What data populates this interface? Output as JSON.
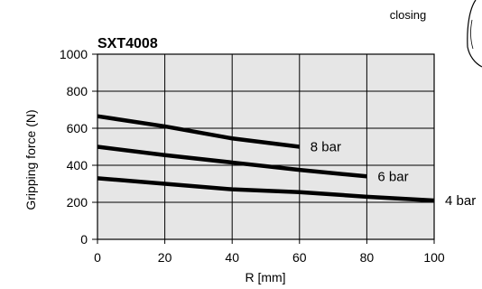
{
  "corner_label": "closing",
  "chart_data": {
    "type": "line",
    "title": "SXT4008",
    "xlabel": "R [mm]",
    "ylabel": "Gripping force (N)",
    "xlim": [
      0,
      100
    ],
    "ylim": [
      0,
      1000
    ],
    "x_ticks": [
      0,
      20,
      40,
      60,
      80,
      100
    ],
    "y_ticks": [
      0,
      200,
      400,
      600,
      800,
      1000
    ],
    "grid": true,
    "plot_background": "#e6e6e6",
    "line_color": "#000000",
    "series": [
      {
        "name": "8 bar",
        "x": [
          0,
          20,
          40,
          60
        ],
        "y": [
          665,
          610,
          545,
          500
        ]
      },
      {
        "name": "6 bar",
        "x": [
          0,
          20,
          40,
          60,
          80
        ],
        "y": [
          500,
          455,
          415,
          375,
          340
        ]
      },
      {
        "name": "4 bar",
        "x": [
          0,
          20,
          40,
          60,
          80,
          100
        ],
        "y": [
          330,
          300,
          270,
          255,
          230,
          210
        ]
      }
    ]
  }
}
